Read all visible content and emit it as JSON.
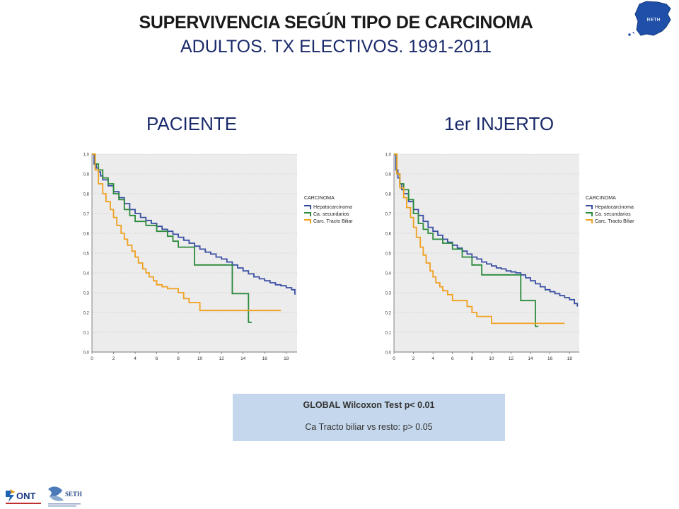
{
  "header": {
    "title": "SUPERVIVENCIA SEGÚN TIPO DE CARCINOMA",
    "subtitle": "ADULTOS. TX ELECTIVOS. 1991-2011"
  },
  "logos": {
    "map_text": "RETH",
    "ont_text": "ONT",
    "seth_text": "SETH"
  },
  "stats": {
    "line1": "GLOBAL Wilcoxon Test p< 0.01",
    "line2": "Ca Tracto biliar vs resto: p> 0.05"
  },
  "colors": {
    "hepato": "#3a4fa3",
    "secundarios": "#2a8a3a",
    "biliar": "#f0a020"
  },
  "chart_data": [
    {
      "type": "line",
      "title": "PACIENTE",
      "legend_title": "CARCINOMA",
      "legend_position": "right",
      "grid": true,
      "xlim": [
        0,
        19
      ],
      "ylim": [
        0,
        1
      ],
      "x_ticks": [
        "0",
        "2",
        "4",
        "6",
        "8",
        "10",
        "12",
        "14",
        "16",
        "18"
      ],
      "y_ticks": [
        "0,0",
        "0,1",
        "0,2",
        "0,3",
        "0,4",
        "0,5",
        "0,6",
        "0,7",
        "0,8",
        "0,9",
        "1,0"
      ],
      "series": [
        {
          "name": "Hepatocarcinoma",
          "color": "#3a4fa3",
          "x": [
            0,
            0.2,
            0.4,
            0.6,
            0.8,
            1,
            1.5,
            2,
            2.5,
            3,
            3.5,
            4,
            4.5,
            5,
            5.5,
            6,
            6.5,
            7,
            7.5,
            8,
            8.5,
            9,
            9.5,
            10,
            10.5,
            11,
            11.5,
            12,
            12.5,
            13,
            13.5,
            14,
            14.5,
            15,
            15.5,
            16,
            16.5,
            17,
            17.5,
            18,
            18.5,
            18.8
          ],
          "y": [
            1,
            0.95,
            0.93,
            0.91,
            0.89,
            0.87,
            0.84,
            0.81,
            0.78,
            0.75,
            0.72,
            0.7,
            0.68,
            0.665,
            0.65,
            0.635,
            0.62,
            0.61,
            0.595,
            0.58,
            0.565,
            0.55,
            0.535,
            0.52,
            0.505,
            0.495,
            0.48,
            0.47,
            0.455,
            0.44,
            0.425,
            0.41,
            0.395,
            0.38,
            0.37,
            0.36,
            0.35,
            0.34,
            0.335,
            0.325,
            0.315,
            0.29
          ]
        },
        {
          "name": "Ca. secundarios",
          "color": "#2a8a3a",
          "x": [
            0,
            0.3,
            0.6,
            1,
            1.5,
            2,
            2.5,
            3,
            3.5,
            4,
            5,
            6,
            7,
            7.5,
            8,
            9,
            9.5,
            13,
            14.5,
            14.8
          ],
          "y": [
            1,
            0.95,
            0.92,
            0.88,
            0.85,
            0.8,
            0.77,
            0.72,
            0.69,
            0.66,
            0.64,
            0.61,
            0.585,
            0.56,
            0.53,
            0.53,
            0.44,
            0.295,
            0.15,
            0.15
          ]
        },
        {
          "name": "Carc. Tracto Biliar",
          "color": "#f0a020",
          "x": [
            0,
            0.3,
            0.6,
            1,
            1.3,
            1.7,
            2,
            2.3,
            2.7,
            3,
            3.3,
            3.7,
            4,
            4.3,
            4.7,
            5,
            5.3,
            5.7,
            6,
            6.5,
            7,
            7.5,
            8,
            8.5,
            9,
            10,
            12,
            14,
            16,
            17.5
          ],
          "y": [
            1,
            0.92,
            0.85,
            0.8,
            0.76,
            0.72,
            0.68,
            0.64,
            0.6,
            0.57,
            0.54,
            0.51,
            0.48,
            0.45,
            0.42,
            0.4,
            0.38,
            0.36,
            0.34,
            0.33,
            0.32,
            0.32,
            0.3,
            0.27,
            0.25,
            0.21,
            0.21,
            0.21,
            0.21,
            0.21
          ]
        }
      ]
    },
    {
      "type": "line",
      "title": "1er INJERTO",
      "legend_title": "CARCINOMA",
      "legend_position": "right",
      "grid": true,
      "xlim": [
        0,
        19
      ],
      "ylim": [
        0,
        1
      ],
      "x_ticks": [
        "0",
        "2",
        "4",
        "6",
        "8",
        "10",
        "12",
        "14",
        "16",
        "18"
      ],
      "y_ticks": [
        "0,0",
        "0,1",
        "0,2",
        "0,3",
        "0,4",
        "0,5",
        "0,6",
        "0,7",
        "0,8",
        "0,9",
        "1,0"
      ],
      "series": [
        {
          "name": "Hepatocarcinoma",
          "color": "#3a4fa3",
          "x": [
            0,
            0.2,
            0.4,
            0.6,
            0.8,
            1,
            1.5,
            2,
            2.5,
            3,
            3.5,
            4,
            4.5,
            5,
            5.5,
            6,
            6.5,
            7,
            7.5,
            8,
            8.5,
            9,
            9.5,
            10,
            10.5,
            11,
            11.5,
            12,
            12.5,
            13,
            13.5,
            14,
            14.5,
            15,
            15.5,
            16,
            16.5,
            17,
            17.5,
            18,
            18.5,
            18.8
          ],
          "y": [
            1,
            0.92,
            0.88,
            0.85,
            0.82,
            0.8,
            0.76,
            0.72,
            0.69,
            0.66,
            0.63,
            0.61,
            0.59,
            0.57,
            0.555,
            0.54,
            0.525,
            0.51,
            0.495,
            0.48,
            0.47,
            0.455,
            0.445,
            0.435,
            0.425,
            0.42,
            0.41,
            0.405,
            0.4,
            0.39,
            0.375,
            0.36,
            0.345,
            0.33,
            0.315,
            0.305,
            0.295,
            0.285,
            0.275,
            0.265,
            0.245,
            0.23
          ]
        },
        {
          "name": "Ca. secundarios",
          "color": "#2a8a3a",
          "x": [
            0,
            0.3,
            0.6,
            1,
            1.5,
            2,
            2.5,
            3,
            3.5,
            4,
            5,
            6,
            7,
            8,
            9,
            10,
            12,
            13,
            14.5,
            14.8
          ],
          "y": [
            1,
            0.9,
            0.85,
            0.82,
            0.77,
            0.7,
            0.65,
            0.62,
            0.6,
            0.57,
            0.55,
            0.52,
            0.48,
            0.44,
            0.39,
            0.39,
            0.39,
            0.26,
            0.13,
            0.13
          ]
        },
        {
          "name": "Carc. Tracto Biliar",
          "color": "#f0a020",
          "x": [
            0,
            0.3,
            0.6,
            1,
            1.3,
            1.7,
            2,
            2.3,
            2.7,
            3,
            3.3,
            3.7,
            4,
            4.3,
            4.7,
            5,
            5.5,
            6,
            6.5,
            7,
            7.5,
            8,
            8.5,
            9,
            10,
            12,
            14,
            16,
            17.5
          ],
          "y": [
            1,
            0.9,
            0.83,
            0.78,
            0.73,
            0.68,
            0.63,
            0.58,
            0.53,
            0.49,
            0.45,
            0.41,
            0.38,
            0.35,
            0.33,
            0.31,
            0.29,
            0.26,
            0.26,
            0.26,
            0.23,
            0.2,
            0.18,
            0.18,
            0.145,
            0.145,
            0.145,
            0.145,
            0.145
          ]
        }
      ]
    }
  ]
}
